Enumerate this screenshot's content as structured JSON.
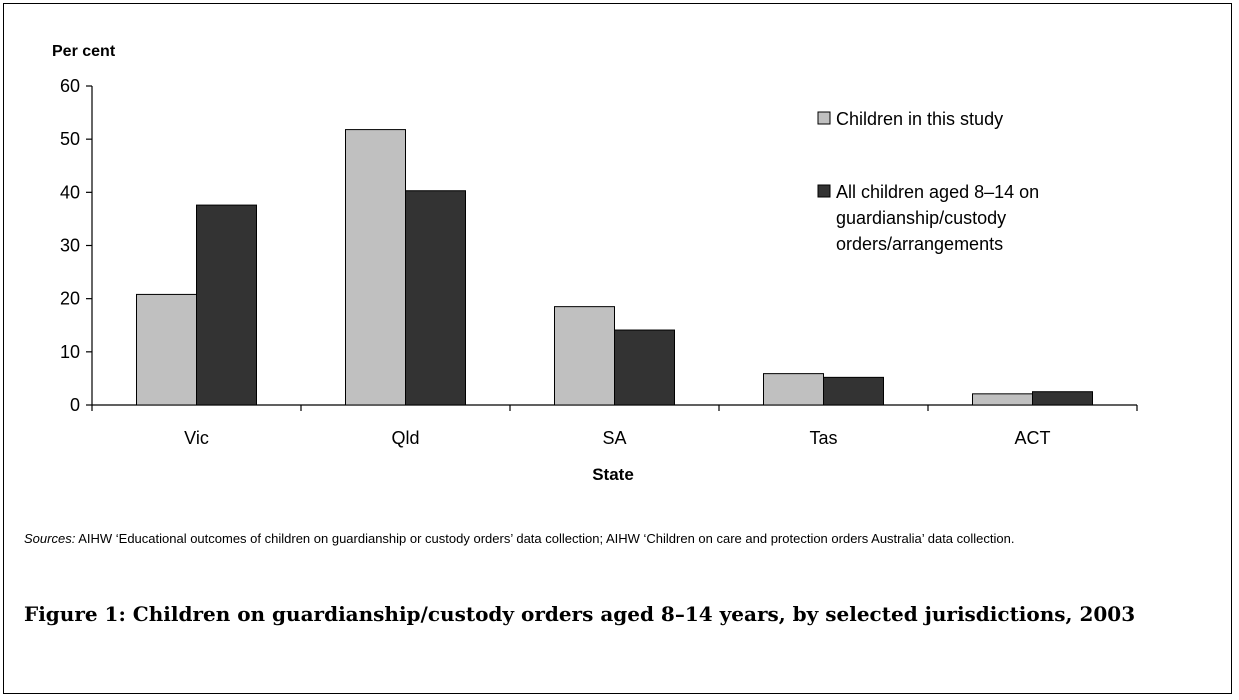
{
  "chart_data": {
    "type": "bar",
    "ylabel": "Per cent",
    "xlabel": "State",
    "categories": [
      "Vic",
      "Qld",
      "SA",
      "Tas",
      "ACT"
    ],
    "ylim": [
      0,
      60
    ],
    "yticks": [
      0,
      10,
      20,
      30,
      40,
      50,
      60
    ],
    "grid": false,
    "legend_position": "top-right",
    "series": [
      {
        "name": "Children in this study",
        "color": "#c0c0c0",
        "values": [
          20.8,
          51.8,
          18.5,
          5.9,
          2.1
        ]
      },
      {
        "name": "All children aged 8–14 on guardianship/custody orders/arrangements",
        "color": "#333333",
        "values": [
          37.6,
          40.3,
          14.1,
          5.2,
          2.5
        ]
      }
    ]
  },
  "legend": {
    "items": [
      {
        "lines": [
          "Children in this study"
        ]
      },
      {
        "lines": [
          "All children aged 8–14 on",
          "guardianship/custody",
          "orders/arrangements"
        ]
      }
    ]
  },
  "sources": {
    "lead": "Sources:",
    "text": " AIHW ‘Educational outcomes of children on guardianship or custody orders’ data collection; AIHW ‘Children on care and protection orders Australia’ data collection."
  },
  "caption": "Figure 1: Children on guardianship/custody orders aged 8–14 years, by selected jurisdictions, 2003"
}
